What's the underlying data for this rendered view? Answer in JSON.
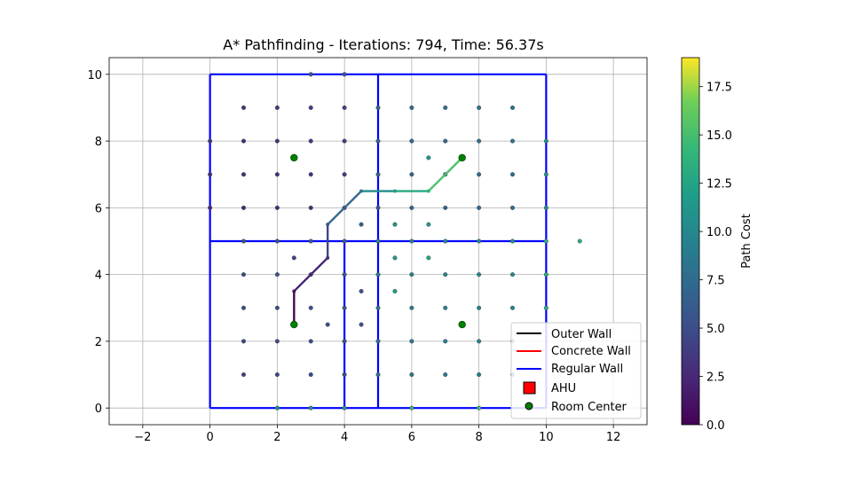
{
  "chart_data": {
    "type": "scatter",
    "title": "A* Pathfinding - Iterations: 794, Time: 56.37s",
    "xlabel": "",
    "ylabel": "",
    "xlim": [
      -3.0,
      13.0
    ],
    "ylim": [
      -0.5,
      10.5
    ],
    "grid": true,
    "x_ticks": [
      -2,
      0,
      2,
      4,
      6,
      8,
      10,
      12
    ],
    "y_ticks": [
      0,
      2,
      4,
      6,
      8,
      10
    ],
    "walls": [
      {
        "x": [
          0,
          10
        ],
        "y": [
          0,
          0
        ]
      },
      {
        "x": [
          10,
          10
        ],
        "y": [
          0,
          10
        ]
      },
      {
        "x": [
          10,
          0
        ],
        "y": [
          10,
          10
        ]
      },
      {
        "x": [
          0,
          0
        ],
        "y": [
          10,
          0
        ]
      },
      {
        "x": [
          5,
          5
        ],
        "y": [
          0,
          10
        ]
      },
      {
        "x": [
          0,
          10
        ],
        "y": [
          5,
          5
        ]
      },
      {
        "x": [
          4,
          4
        ],
        "y": [
          0,
          5
        ]
      }
    ],
    "nodes": [
      [
        1,
        9,
        3.3
      ],
      [
        2,
        9,
        3.6
      ],
      [
        3,
        9,
        3.9
      ],
      [
        4,
        9,
        4.2
      ],
      [
        5,
        9,
        7.2
      ],
      [
        6,
        9,
        7.5
      ],
      [
        7,
        9,
        7.8
      ],
      [
        8,
        9,
        8.1
      ],
      [
        9,
        9,
        8.4
      ],
      [
        1,
        8,
        3.0
      ],
      [
        2,
        8,
        3.3
      ],
      [
        3,
        8,
        3.6
      ],
      [
        4,
        8,
        3.9
      ],
      [
        5,
        8,
        6.9
      ],
      [
        6,
        8,
        7.2
      ],
      [
        7,
        8,
        7.5
      ],
      [
        8,
        8,
        7.8
      ],
      [
        9,
        8,
        8.1
      ],
      [
        10,
        8,
        11.1
      ],
      [
        1,
        7,
        2.7
      ],
      [
        2,
        7,
        3.0
      ],
      [
        3,
        7,
        3.3
      ],
      [
        4,
        7,
        3.6
      ],
      [
        5,
        7,
        6.6
      ],
      [
        6,
        7,
        6.9
      ],
      [
        7,
        7,
        7.2
      ],
      [
        8,
        7,
        7.5
      ],
      [
        9,
        7,
        7.8
      ],
      [
        10,
        7,
        10.8
      ],
      [
        1,
        6,
        2.4
      ],
      [
        2,
        6,
        2.7
      ],
      [
        3,
        6,
        3.0
      ],
      [
        4,
        6,
        3.3
      ],
      [
        5,
        6,
        6.3
      ],
      [
        6,
        6,
        6.6
      ],
      [
        7,
        6,
        6.9
      ],
      [
        8,
        6,
        7.2
      ],
      [
        9,
        6,
        7.5
      ],
      [
        10,
        6,
        10.5
      ],
      [
        1,
        5,
        5.4
      ],
      [
        2,
        5,
        5.7
      ],
      [
        3,
        5,
        6.0
      ],
      [
        4,
        5,
        6.3
      ],
      [
        5,
        5,
        9.3
      ],
      [
        6,
        5,
        9.6
      ],
      [
        7,
        5,
        9.9
      ],
      [
        8,
        5,
        10.2
      ],
      [
        9,
        5,
        10.5
      ],
      [
        10,
        5,
        13.5
      ],
      [
        1,
        4,
        5.1
      ],
      [
        2,
        4,
        5.4
      ],
      [
        3,
        4,
        5.7
      ],
      [
        4,
        4,
        6.0
      ],
      [
        5,
        4,
        9.0
      ],
      [
        6,
        4,
        9.3
      ],
      [
        7,
        4,
        9.6
      ],
      [
        8,
        4,
        9.9
      ],
      [
        9,
        4,
        10.2
      ],
      [
        10,
        4,
        13.2
      ],
      [
        1,
        3,
        4.8
      ],
      [
        2,
        3,
        5.1
      ],
      [
        3,
        3,
        5.4
      ],
      [
        4,
        3,
        5.7
      ],
      [
        5,
        3,
        8.7
      ],
      [
        6,
        3,
        9.0
      ],
      [
        7,
        3,
        9.3
      ],
      [
        8,
        3,
        9.6
      ],
      [
        9,
        3,
        9.9
      ],
      [
        10,
        3,
        12.9
      ],
      [
        1,
        2,
        4.5
      ],
      [
        2,
        2,
        4.8
      ],
      [
        3,
        2,
        5.1
      ],
      [
        4,
        2,
        5.4
      ],
      [
        5,
        2,
        8.4
      ],
      [
        6,
        2,
        8.7
      ],
      [
        7,
        2,
        9.0
      ],
      [
        8,
        2,
        9.3
      ],
      [
        9,
        2,
        9.6
      ],
      [
        1,
        1,
        4.2
      ],
      [
        2,
        1,
        4.5
      ],
      [
        3,
        1,
        4.8
      ],
      [
        4,
        1,
        5.1
      ],
      [
        5,
        1,
        8.1
      ],
      [
        6,
        1,
        8.4
      ],
      [
        7,
        1,
        8.7
      ],
      [
        8,
        1,
        9.0
      ],
      [
        9,
        1,
        9.3
      ],
      [
        3,
        10,
        5.5
      ],
      [
        4,
        10,
        5.8
      ],
      [
        2,
        0,
        10.5
      ],
      [
        3,
        0,
        10.8
      ],
      [
        4,
        0,
        11.1
      ],
      [
        6,
        0,
        13.8
      ],
      [
        8,
        0,
        14.4
      ],
      [
        0,
        8,
        3.4
      ],
      [
        0,
        7,
        3.1
      ],
      [
        0,
        6,
        2.8
      ],
      [
        2.5,
        4.5,
        4.5
      ],
      [
        3.5,
        2.5,
        5.0
      ],
      [
        4.5,
        2.5,
        5.4
      ],
      [
        4.5,
        3.5,
        5.8
      ],
      [
        4.5,
        5.5,
        6.8
      ],
      [
        5.5,
        5.5,
        11.0
      ],
      [
        5.5,
        4.5,
        11.5
      ],
      [
        5.5,
        3.5,
        11.8
      ],
      [
        6.5,
        4.5,
        12.4
      ],
      [
        6.5,
        5.5,
        11.6
      ],
      [
        6.5,
        7.5,
        11.2
      ],
      [
        11,
        5,
        13.5
      ]
    ],
    "path": [
      {
        "x": 2.5,
        "y": 2.5,
        "cost": 0.0
      },
      {
        "x": 2.5,
        "y": 3.5,
        "cost": 1.0
      },
      {
        "x": 3.5,
        "y": 4.5,
        "cost": 3.0
      },
      {
        "x": 3.5,
        "y": 5.5,
        "cost": 6.0
      },
      {
        "x": 4.5,
        "y": 6.5,
        "cost": 8.5
      },
      {
        "x": 5.5,
        "y": 6.5,
        "cost": 12.0
      },
      {
        "x": 6.5,
        "y": 6.5,
        "cost": 14.0
      },
      {
        "x": 7.5,
        "y": 7.5,
        "cost": 16.5
      }
    ],
    "room_centers": [
      {
        "x": 2.5,
        "y": 7.5
      },
      {
        "x": 7.5,
        "y": 7.5
      },
      {
        "x": 2.5,
        "y": 2.5
      },
      {
        "x": 7.5,
        "y": 2.5
      }
    ],
    "legend": {
      "placement": "lower-right",
      "items": [
        {
          "label": "Outer Wall",
          "type": "line",
          "color": "#000000"
        },
        {
          "label": "Concrete Wall",
          "type": "line",
          "color": "#ff0000"
        },
        {
          "label": "Regular Wall",
          "type": "line",
          "color": "#0000ff"
        },
        {
          "label": "AHU",
          "type": "square",
          "color": "#ff0000"
        },
        {
          "label": "Room Center",
          "type": "circle",
          "color": "#008000"
        }
      ]
    },
    "colorbar": {
      "label": "Path Cost",
      "min": 0.0,
      "max": 19.0,
      "ticks": [
        "0.0",
        "2.5",
        "5.0",
        "7.5",
        "10.0",
        "12.5",
        "15.0",
        "17.5"
      ],
      "colormap": "viridis"
    },
    "wall_color": "#0000ff"
  }
}
